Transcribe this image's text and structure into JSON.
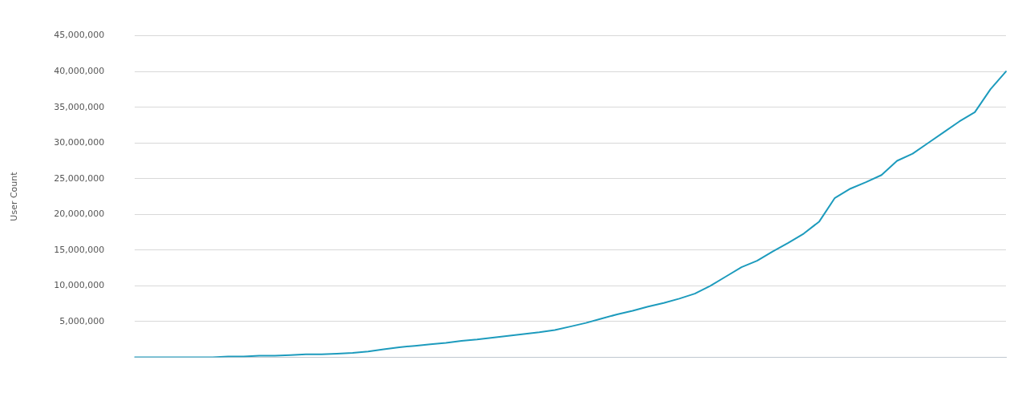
{
  "chart_data": {
    "type": "line",
    "ylabel": "User Count",
    "categories": [
      null,
      null,
      null,
      null,
      null,
      null,
      null,
      null,
      null,
      null,
      null,
      null,
      null,
      null,
      null,
      null,
      null,
      null,
      null,
      null,
      null,
      null,
      null,
      null,
      null,
      null,
      null,
      null,
      null,
      null,
      null,
      null,
      null,
      null,
      null,
      null,
      null,
      null,
      null,
      null,
      null,
      null,
      null,
      null,
      null,
      null,
      null,
      null,
      null,
      null,
      null,
      null,
      null,
      null,
      null,
      null,
      null
    ],
    "series": [
      {
        "color": "#1d9bbd",
        "values": [
          0,
          0,
          0,
          0,
          0,
          0,
          100000,
          100000,
          200000,
          200000,
          300000,
          400000,
          400000,
          500000,
          600000,
          800000,
          1100000,
          1400000,
          1600000,
          1800000,
          2000000,
          2300000,
          2500000,
          2750000,
          3000000,
          3250000,
          3500000,
          3800000,
          4300000,
          4800000,
          5400000,
          6000000,
          6500000,
          7100000,
          7600000,
          8200000,
          8900000,
          10000000,
          11300000,
          12600000,
          13500000,
          14800000,
          16000000,
          17300000,
          19000000,
          22300000,
          23600000,
          24500000,
          25500000,
          27500000,
          28500000,
          30000000,
          31500000,
          33000000,
          34300000,
          37500000,
          40000000
        ]
      }
    ],
    "ylim": [
      0,
      45000000
    ],
    "yticks": [
      {
        "value": 0,
        "label": null
      },
      {
        "value": 5000000,
        "label": "5,000,000"
      },
      {
        "value": 10000000,
        "label": "10,000,000"
      },
      {
        "value": 15000000,
        "label": "15,000,000"
      },
      {
        "value": 20000000,
        "label": "20,000,000"
      },
      {
        "value": 25000000,
        "label": "25,000,000"
      },
      {
        "value": 30000000,
        "label": "30,000,000"
      },
      {
        "value": 35000000,
        "label": "35,000,000"
      },
      {
        "value": 40000000,
        "label": "40,000,000"
      },
      {
        "value": 45000000,
        "label": "45,000,000"
      }
    ],
    "grid": "y",
    "legend": false,
    "marker": "none",
    "line_style": "solid",
    "tick_labels": "y"
  }
}
